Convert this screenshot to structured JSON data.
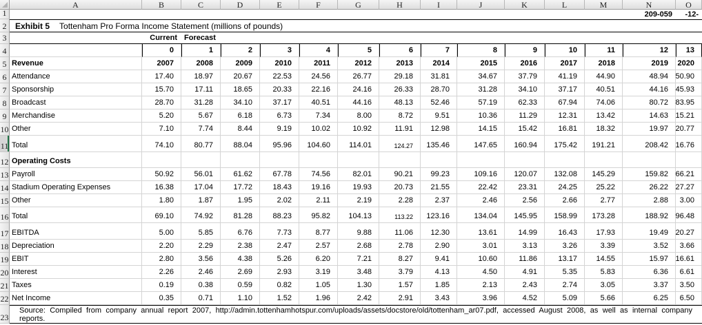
{
  "page_header": {
    "document_code": "209-059",
    "page_number": "-12-"
  },
  "exhibit": {
    "label": "Exhibit 5",
    "title": "Tottenham Pro Forma Income Statement (millions of pounds)"
  },
  "columns": {
    "letters": [
      "A",
      "B",
      "C",
      "D",
      "E",
      "F",
      "G",
      "H",
      "I",
      "J",
      "K",
      "L",
      "M",
      "N",
      "O"
    ]
  },
  "special_row_numbers": {
    "r1": "1",
    "r2": "2",
    "r3": "3",
    "r23": "23"
  },
  "scenario": {
    "current": "Current",
    "forecast": "Forecast"
  },
  "grid_rows": [
    {
      "n": "4",
      "type": "periods",
      "values": [
        "0",
        "1",
        "2",
        "3",
        "4",
        "5",
        "6",
        "7",
        "8",
        "9",
        "10",
        "11",
        "12",
        "13"
      ]
    },
    {
      "n": "5",
      "label": "Revenue",
      "bold": true,
      "bold_values": true,
      "values": [
        "2007",
        "2008",
        "2009",
        "2010",
        "2011",
        "2012",
        "2013",
        "2014",
        "2015",
        "2016",
        "2017",
        "2018",
        "2019",
        "2020"
      ]
    },
    {
      "n": "6",
      "label": "Attendance",
      "values": [
        "17.40",
        "18.97",
        "20.67",
        "22.53",
        "24.56",
        "26.77",
        "29.18",
        "31.81",
        "34.67",
        "37.79",
        "41.19",
        "44.90",
        "48.94",
        "50.90"
      ]
    },
    {
      "n": "7",
      "label": "Sponsorship",
      "values": [
        "15.70",
        "17.11",
        "18.65",
        "20.33",
        "22.16",
        "24.16",
        "26.33",
        "28.70",
        "31.28",
        "34.10",
        "37.17",
        "40.51",
        "44.16",
        "45.93"
      ]
    },
    {
      "n": "8",
      "label": "Broadcast",
      "values": [
        "28.70",
        "31.28",
        "34.10",
        "37.17",
        "40.51",
        "44.16",
        "48.13",
        "52.46",
        "57.19",
        "62.33",
        "67.94",
        "74.06",
        "80.72",
        "83.95"
      ]
    },
    {
      "n": "9",
      "label": "Merchandise",
      "values": [
        "5.20",
        "5.67",
        "6.18",
        "6.73",
        "7.34",
        "8.00",
        "8.72",
        "9.51",
        "10.36",
        "11.29",
        "12.31",
        "13.42",
        "14.63",
        "15.21"
      ]
    },
    {
      "n": "10",
      "label": "Other",
      "values": [
        "7.10",
        "7.74",
        "8.44",
        "9.19",
        "10.02",
        "10.92",
        "11.91",
        "12.98",
        "14.15",
        "15.42",
        "16.81",
        "18.32",
        "19.97",
        "20.77"
      ]
    },
    {
      "n": "11",
      "label": "Total",
      "active": true,
      "shrink": [
        6
      ],
      "values": [
        "74.10",
        "80.77",
        "88.04",
        "95.96",
        "104.60",
        "114.01",
        "124.27",
        "135.46",
        "147.65",
        "160.94",
        "175.42",
        "191.21",
        "208.42",
        "216.76"
      ]
    },
    {
      "n": "12",
      "label": "Operating Costs",
      "bold": true,
      "values": []
    },
    {
      "n": "13",
      "label": "Payroll",
      "values": [
        "50.92",
        "56.01",
        "61.62",
        "67.78",
        "74.56",
        "82.01",
        "90.21",
        "99.23",
        "109.16",
        "120.07",
        "132.08",
        "145.29",
        "159.82",
        "166.21"
      ]
    },
    {
      "n": "14",
      "label": "Stadium Operating Expenses",
      "values": [
        "16.38",
        "17.04",
        "17.72",
        "18.43",
        "19.16",
        "19.93",
        "20.73",
        "21.55",
        "22.42",
        "23.31",
        "24.25",
        "25.22",
        "26.22",
        "27.27"
      ]
    },
    {
      "n": "15",
      "label": "Other",
      "values": [
        "1.80",
        "1.87",
        "1.95",
        "2.02",
        "2.11",
        "2.19",
        "2.28",
        "2.37",
        "2.46",
        "2.56",
        "2.66",
        "2.77",
        "2.88",
        "3.00"
      ]
    },
    {
      "n": "16",
      "label": "Total",
      "shrink": [
        6
      ],
      "values": [
        "69.10",
        "74.92",
        "81.28",
        "88.23",
        "95.82",
        "104.13",
        "113.22",
        "123.16",
        "134.04",
        "145.95",
        "158.99",
        "173.28",
        "188.92",
        "196.48"
      ]
    },
    {
      "n": "17",
      "label": "EBITDA",
      "values": [
        "5.00",
        "5.85",
        "6.76",
        "7.73",
        "8.77",
        "9.88",
        "11.06",
        "12.30",
        "13.61",
        "14.99",
        "16.43",
        "17.93",
        "19.49",
        "20.27"
      ]
    },
    {
      "n": "18",
      "label": "Depreciation",
      "values": [
        "2.20",
        "2.29",
        "2.38",
        "2.47",
        "2.57",
        "2.68",
        "2.78",
        "2.90",
        "3.01",
        "3.13",
        "3.26",
        "3.39",
        "3.52",
        "3.66"
      ]
    },
    {
      "n": "19",
      "label": "EBIT",
      "values": [
        "2.80",
        "3.56",
        "4.38",
        "5.26",
        "6.20",
        "7.21",
        "8.27",
        "9.41",
        "10.60",
        "11.86",
        "13.17",
        "14.55",
        "15.97",
        "16.61"
      ]
    },
    {
      "n": "20",
      "label": "Interest",
      "values": [
        "2.26",
        "2.46",
        "2.69",
        "2.93",
        "3.19",
        "3.48",
        "3.79",
        "4.13",
        "4.50",
        "4.91",
        "5.35",
        "5.83",
        "6.36",
        "6.61"
      ]
    },
    {
      "n": "21",
      "label": "Taxes",
      "values": [
        "0.19",
        "0.38",
        "0.59",
        "0.82",
        "1.05",
        "1.30",
        "1.57",
        "1.85",
        "2.13",
        "2.43",
        "2.74",
        "3.05",
        "3.37",
        "3.50"
      ]
    },
    {
      "n": "22",
      "label": "Net Income",
      "values": [
        "0.35",
        "0.71",
        "1.10",
        "1.52",
        "1.96",
        "2.42",
        "2.91",
        "3.43",
        "3.96",
        "4.52",
        "5.09",
        "5.66",
        "6.25",
        "6.50"
      ]
    }
  ],
  "source_note": {
    "line1": "Source: Compiled from company annual report 2007, http://admin.tottenhamhotspur.com/uploads/assets/docstore/old/tottenham_ar07.pdf, accessed August 2008, as well as internal company",
    "line2": "reports."
  },
  "colors": {
    "grid_line": "#d4d4d4",
    "table_border": "#000000",
    "header_bg": "#e8e8e8",
    "active_row_accent": "#217346"
  }
}
